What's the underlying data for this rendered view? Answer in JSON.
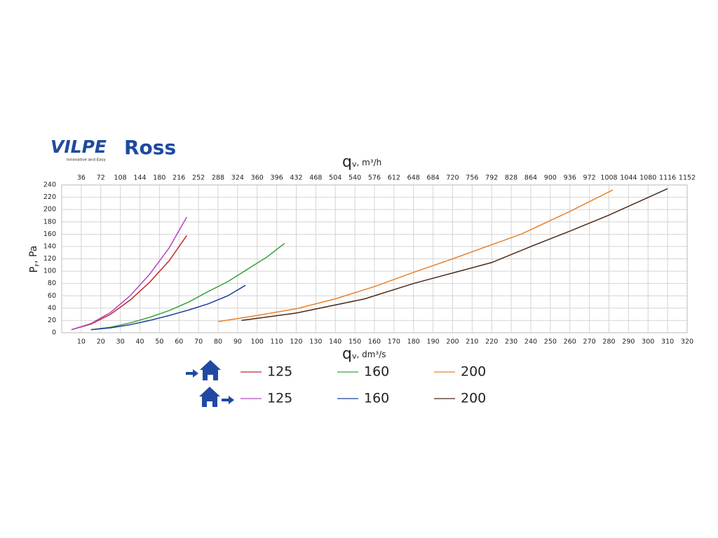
{
  "brand": {
    "logo": "VILPE",
    "tagline": "Innovative and Easy",
    "product": "Ross"
  },
  "chart_data": {
    "type": "line",
    "x_label": {
      "symbol": "q",
      "subscript": "v",
      "unit": ", dm³/s"
    },
    "x2_label": {
      "symbol": "q",
      "subscript": "v",
      "unit": ", m³/h"
    },
    "y_label": {
      "symbol": "P",
      "subscript": "F",
      "unit": ", Pa"
    },
    "xlim": [
      0,
      320
    ],
    "xticks": [
      10,
      20,
      30,
      40,
      50,
      60,
      70,
      80,
      90,
      100,
      110,
      120,
      130,
      140,
      150,
      160,
      170,
      180,
      190,
      200,
      210,
      220,
      230,
      240,
      250,
      260,
      270,
      280,
      290,
      300,
      310,
      320
    ],
    "x2lim": [
      0,
      1152
    ],
    "x2ticks": [
      36,
      72,
      108,
      144,
      180,
      216,
      252,
      288,
      324,
      360,
      396,
      432,
      468,
      504,
      540,
      576,
      612,
      648,
      684,
      720,
      756,
      792,
      828,
      864,
      900,
      936,
      972,
      1008,
      1044,
      1080,
      1116,
      1152
    ],
    "ylim": [
      0,
      240
    ],
    "yticks": [
      0,
      20,
      40,
      60,
      80,
      100,
      120,
      140,
      160,
      180,
      200,
      220,
      240
    ],
    "grid": true,
    "series": [
      {
        "name": "125",
        "color": "#c0282d",
        "x": [
          5,
          15,
          25,
          35,
          45,
          55,
          64
        ],
        "values": [
          5,
          14,
          30,
          53,
          82,
          117,
          158
        ]
      },
      {
        "name": "160",
        "color": "#3aa33a",
        "x": [
          15,
          25,
          35,
          45,
          55,
          65,
          75,
          85,
          95,
          105,
          114
        ],
        "values": [
          5,
          9,
          16,
          25,
          36,
          50,
          67,
          83,
          103,
          123,
          145
        ]
      },
      {
        "name": "200",
        "color": "#e8822a",
        "x": [
          80,
          100,
          120,
          140,
          160,
          180,
          200,
          220,
          235,
          260,
          282
        ],
        "values": [
          18,
          28,
          39,
          55,
          75,
          98,
          120,
          143,
          160,
          197,
          232
        ]
      },
      {
        "name": "125",
        "color": "#b845c8",
        "x": [
          5,
          15,
          25,
          35,
          45,
          55,
          64
        ],
        "values": [
          5,
          15,
          33,
          60,
          95,
          138,
          188
        ]
      },
      {
        "name": "160",
        "color": "#1f3d99",
        "x": [
          15,
          25,
          35,
          45,
          55,
          65,
          75,
          85,
          94
        ],
        "values": [
          5,
          8,
          13,
          20,
          28,
          37,
          47,
          60,
          77
        ]
      },
      {
        "name": "200",
        "color": "#4a2a1a",
        "x": [
          92,
          120,
          155,
          180,
          200,
          220,
          240,
          260,
          280,
          310
        ],
        "values": [
          20,
          32,
          55,
          80,
          97,
          114,
          140,
          165,
          191,
          234
        ]
      }
    ]
  }
}
